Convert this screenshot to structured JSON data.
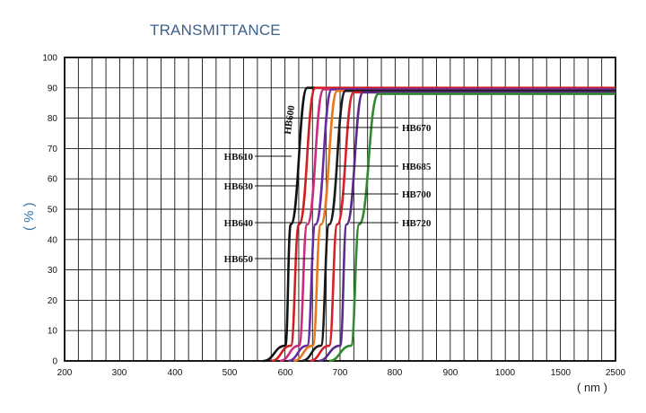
{
  "chart_data": {
    "type": "line",
    "title": "TRANSMITTANCE",
    "xlabel": "( nm )",
    "ylabel": "( % )",
    "x_ticks": [
      "200",
      "300",
      "400",
      "500",
      "600",
      "700",
      "800",
      "900",
      "1000",
      "1500",
      "2500"
    ],
    "y_ticks": [
      "0",
      "10",
      "20",
      "30",
      "40",
      "50",
      "60",
      "70",
      "80",
      "90",
      "100"
    ],
    "ylim": [
      0,
      100
    ],
    "grid": true,
    "series": [
      {
        "name": "HB600",
        "color": "#111111",
        "x": [
          560,
          600,
          610,
          640,
          2500
        ],
        "y": [
          0,
          5,
          45,
          90,
          90
        ]
      },
      {
        "name": "HB610",
        "color": "#d11f1f",
        "x": [
          575,
          610,
          625,
          655,
          2500
        ],
        "y": [
          0,
          5,
          45,
          90,
          90
        ]
      },
      {
        "name": "HB630",
        "color": "#cc2a7a",
        "x": [
          590,
          625,
          640,
          670,
          2500
        ],
        "y": [
          0,
          5,
          45,
          89.5,
          89.5
        ]
      },
      {
        "name": "HB640",
        "color": "#6a2aa0",
        "x": [
          605,
          640,
          655,
          685,
          2500
        ],
        "y": [
          0,
          5,
          45,
          89.5,
          89.5
        ]
      },
      {
        "name": "HB650",
        "color": "#e8781e",
        "x": [
          615,
          650,
          665,
          695,
          2500
        ],
        "y": [
          0,
          5,
          45,
          89,
          89
        ]
      },
      {
        "name": "HB670",
        "color": "#1a1a1a",
        "x": [
          630,
          665,
          680,
          710,
          2500
        ],
        "y": [
          0,
          5,
          45,
          89,
          89
        ]
      },
      {
        "name": "HB685",
        "color": "#d8202a",
        "x": [
          645,
          680,
          695,
          725,
          2500
        ],
        "y": [
          0,
          5,
          45,
          88.5,
          88.5
        ]
      },
      {
        "name": "HB700",
        "color": "#5a2a8a",
        "x": [
          660,
          700,
          712,
          742,
          2500
        ],
        "y": [
          0,
          5,
          45,
          88.5,
          88.5
        ]
      },
      {
        "name": "HB720",
        "color": "#2f8a2f",
        "x": [
          680,
          720,
          735,
          770,
          2500
        ],
        "y": [
          0,
          5,
          45,
          88,
          88
        ]
      }
    ]
  }
}
